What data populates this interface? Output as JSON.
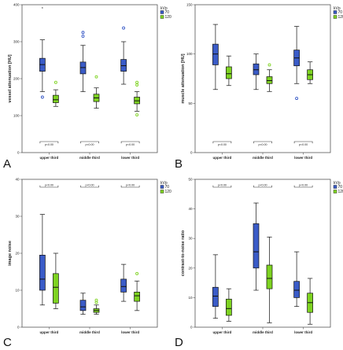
{
  "legend": {
    "title": "kVp",
    "items": [
      "70",
      "120"
    ]
  },
  "colors": {
    "s70": "#3a5bc7",
    "s120": "#7ed321"
  },
  "chart_data": [
    {
      "panel": "A",
      "type": "box",
      "ylabel": "vessel attenuation [HU]",
      "ylim": [
        0,
        400
      ],
      "yticks": [
        0,
        100,
        200,
        300,
        400
      ],
      "categories": [
        "upper third",
        "middle third",
        "lower third"
      ],
      "bracket_label": "p<0.00",
      "series": [
        {
          "name": "70",
          "boxes": [
            {
              "min": 165,
              "q1": 220,
              "median": 238,
              "q3": 255,
              "max": 305,
              "outliers": [
                150
              ],
              "extremes": [
                388
              ]
            },
            {
              "min": 165,
              "q1": 213,
              "median": 230,
              "q3": 245,
              "max": 290,
              "outliers": [
                315,
                325
              ],
              "extremes": []
            },
            {
              "min": 185,
              "q1": 220,
              "median": 235,
              "q3": 252,
              "max": 300,
              "outliers": [
                337
              ],
              "extremes": []
            }
          ]
        },
        {
          "name": "120",
          "boxes": [
            {
              "min": 125,
              "q1": 135,
              "median": 143,
              "q3": 155,
              "max": 170,
              "outliers": [
                190
              ],
              "extremes": []
            },
            {
              "min": 120,
              "q1": 138,
              "median": 148,
              "q3": 158,
              "max": 175,
              "outliers": [
                205
              ],
              "extremes": []
            },
            {
              "min": 112,
              "q1": 132,
              "median": 140,
              "q3": 150,
              "max": 165,
              "outliers": [
                102,
                183,
                190
              ],
              "extremes": []
            }
          ]
        }
      ]
    },
    {
      "panel": "B",
      "type": "box",
      "ylabel": "muscle attenuation [HU]",
      "ylim": [
        0,
        150
      ],
      "yticks": [
        0,
        50,
        100,
        150
      ],
      "categories": [
        "upper third",
        "middle third",
        "lower third"
      ],
      "bracket_label": "p<0.00",
      "series": [
        {
          "name": "70",
          "boxes": [
            {
              "min": 64,
              "q1": 89,
              "median": 100,
              "q3": 110,
              "max": 130,
              "outliers": [],
              "extremes": []
            },
            {
              "min": 64,
              "q1": 79,
              "median": 84,
              "q3": 90,
              "max": 100,
              "outliers": [],
              "extremes": []
            },
            {
              "min": 70,
              "q1": 88,
              "median": 96,
              "q3": 104,
              "max": 128,
              "outliers": [
                55
              ],
              "extremes": []
            }
          ]
        },
        {
          "name": "120",
          "boxes": [
            {
              "min": 68,
              "q1": 75,
              "median": 80,
              "q3": 87,
              "max": 98,
              "outliers": [],
              "extremes": []
            },
            {
              "min": 62,
              "q1": 70,
              "median": 73,
              "q3": 77,
              "max": 84,
              "outliers": [
                89
              ],
              "extremes": []
            },
            {
              "min": 70,
              "q1": 74,
              "median": 79,
              "q3": 84,
              "max": 92,
              "outliers": [],
              "extremes": []
            }
          ]
        }
      ]
    },
    {
      "panel": "C",
      "type": "box",
      "ylabel": "image noise",
      "ylim": [
        0,
        40
      ],
      "yticks": [
        0,
        10,
        20,
        30,
        40
      ],
      "categories": [
        "upper third",
        "middle third",
        "lower third"
      ],
      "bracket_label": "p<0.00",
      "series": [
        {
          "name": "70",
          "boxes": [
            {
              "min": 6,
              "q1": 10,
              "median": 13,
              "q3": 19.5,
              "max": 30.5,
              "outliers": [],
              "extremes": []
            },
            {
              "min": 3.5,
              "q1": 4.5,
              "median": 5.5,
              "q3": 7.3,
              "max": 9.2,
              "outliers": [],
              "extremes": []
            },
            {
              "min": 7,
              "q1": 9.5,
              "median": 11,
              "q3": 13,
              "max": 17,
              "outliers": [],
              "extremes": []
            }
          ]
        },
        {
          "name": "120",
          "boxes": [
            {
              "min": 5,
              "q1": 6.5,
              "median": 10.8,
              "q3": 14.5,
              "max": 20,
              "outliers": [],
              "extremes": []
            },
            {
              "min": 3.5,
              "q1": 4,
              "median": 4.5,
              "q3": 5,
              "max": 6,
              "outliers": [
                6.7,
                7.3
              ],
              "extremes": []
            },
            {
              "min": 4.5,
              "q1": 7,
              "median": 8.5,
              "q3": 9.5,
              "max": 12.5,
              "outliers": [
                14.5
              ],
              "extremes": []
            }
          ]
        }
      ]
    },
    {
      "panel": "D",
      "type": "box",
      "ylabel": "contrast-to-noise ratio",
      "ylim": [
        0,
        50
      ],
      "yticks": [
        0,
        10,
        20,
        30,
        40,
        50
      ],
      "categories": [
        "upper third",
        "middle third",
        "lower third"
      ],
      "bracket_label": "p<0.00",
      "series": [
        {
          "name": "70",
          "boxes": [
            {
              "min": 3,
              "q1": 7,
              "median": 10.5,
              "q3": 13.5,
              "max": 24.5,
              "outliers": [],
              "extremes": []
            },
            {
              "min": 12.5,
              "q1": 20,
              "median": 25.5,
              "q3": 35,
              "max": 42,
              "outliers": [],
              "extremes": []
            },
            {
              "min": 7,
              "q1": 10,
              "median": 12.5,
              "q3": 15.5,
              "max": 25.5,
              "outliers": [],
              "extremes": []
            }
          ]
        },
        {
          "name": "120",
          "boxes": [
            {
              "min": 2,
              "q1": 4,
              "median": 6.3,
              "q3": 9.5,
              "max": 13,
              "outliers": [],
              "extremes": []
            },
            {
              "min": 1.5,
              "q1": 13,
              "median": 16.5,
              "q3": 21,
              "max": 30.5,
              "outliers": [],
              "extremes": []
            },
            {
              "min": 1,
              "q1": 5,
              "median": 8.3,
              "q3": 11.5,
              "max": 16.5,
              "outliers": [],
              "extremes": []
            }
          ]
        }
      ]
    }
  ]
}
